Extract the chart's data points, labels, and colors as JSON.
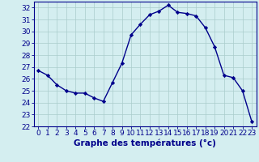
{
  "hours": [
    0,
    1,
    2,
    3,
    4,
    5,
    6,
    7,
    8,
    9,
    10,
    11,
    12,
    13,
    14,
    15,
    16,
    17,
    18,
    19,
    20,
    21,
    22,
    23
  ],
  "temps": [
    26.7,
    26.3,
    25.5,
    25.0,
    24.8,
    24.8,
    24.4,
    24.1,
    25.7,
    27.3,
    29.7,
    30.6,
    31.4,
    31.7,
    32.2,
    31.6,
    31.5,
    31.3,
    30.3,
    28.7,
    26.3,
    26.1,
    25.0,
    22.4
  ],
  "line_color": "#00008b",
  "marker": "D",
  "marker_size": 2.2,
  "bg_color": "#d4eef0",
  "grid_color": "#aacccc",
  "xlabel": "Graphe des températures (°c)",
  "xlabel_fontsize": 7.5,
  "ylim": [
    22,
    32.5
  ],
  "yticks": [
    22,
    23,
    24,
    25,
    26,
    27,
    28,
    29,
    30,
    31,
    32
  ],
  "xticks": [
    0,
    1,
    2,
    3,
    4,
    5,
    6,
    7,
    8,
    9,
    10,
    11,
    12,
    13,
    14,
    15,
    16,
    17,
    18,
    19,
    20,
    21,
    22,
    23
  ],
  "tick_fontsize": 6.5,
  "spine_color": "#00008b",
  "axis_label_color": "#00008b",
  "linewidth": 1.0
}
